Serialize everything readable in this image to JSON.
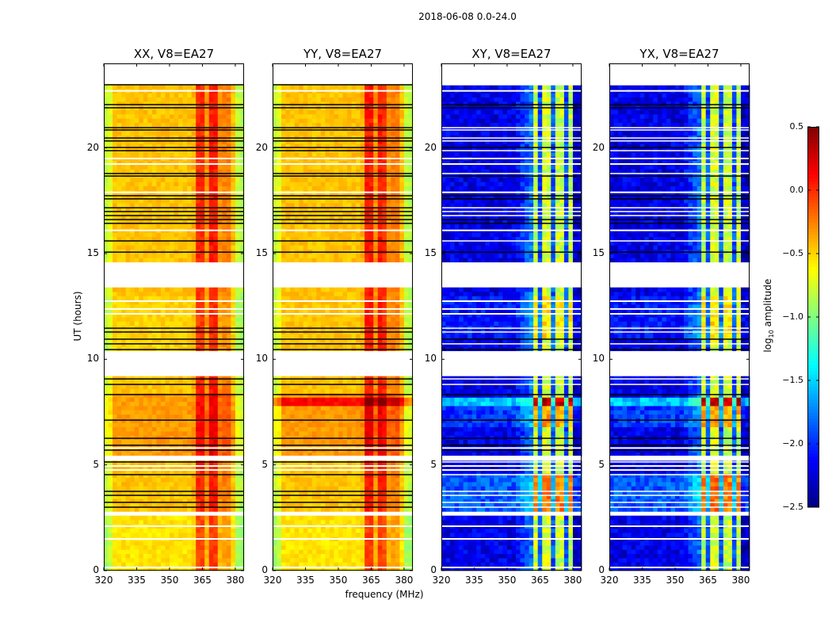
{
  "chart_data": {
    "type": "heatmap",
    "title": "2018-06-08 0.0-24.0",
    "xlabel": "frequency (MHz)",
    "ylabel": "UT (hours)",
    "xlim": [
      320,
      384
    ],
    "ylim": [
      0,
      24
    ],
    "xticks": [
      "320",
      "335",
      "350",
      "365",
      "380"
    ],
    "xtick_values": [
      320,
      335,
      350,
      365,
      380
    ],
    "yticks": [
      "0",
      "5",
      "10",
      "15",
      "20"
    ],
    "ytick_values": [
      0,
      5,
      10,
      15,
      20
    ],
    "colorbar": {
      "label": "log₁₀ amplitude",
      "label_main": "log",
      "label_sub": "10",
      "label_rest": " amplitude",
      "range": [
        -2.5,
        0.5
      ],
      "ticks": [
        "0.5",
        "0.0",
        "−0.5",
        "−1.0",
        "−1.5",
        "−2.0",
        "−2.5"
      ],
      "tick_values": [
        0.5,
        0.0,
        -0.5,
        -1.0,
        -1.5,
        -2.0,
        -2.5
      ],
      "colormap": "jet"
    },
    "freq_bin_MHz": 2,
    "time_bin_hours": 0.2,
    "flagged_hours": [
      [
        22.95,
        24
      ],
      [
        13.45,
        14.6
      ],
      [
        9.12,
        10.35
      ],
      [
        2.62,
        2.75
      ],
      [
        5.2,
        5.35
      ]
    ],
    "black_lines_hours": [
      22.99,
      22.05,
      21.9,
      20.96,
      20.85,
      20.47,
      20.33,
      20.02,
      19.87,
      18.79,
      18.67,
      17.74,
      17.59,
      17.17,
      16.99,
      16.8,
      16.61,
      16.43,
      15.6,
      15.07,
      11.47,
      11.29,
      10.95,
      10.73,
      10.46,
      9.07,
      8.81,
      8.33,
      7.12,
      6.26,
      5.93,
      5.7,
      5.14,
      4.54,
      3.75,
      3.56,
      3.23,
      3.0
    ],
    "white_lines_hours": [
      22.7,
      19.5,
      19.24,
      17.9,
      16.1,
      12.75,
      12.38,
      12.15,
      5.8,
      5.4,
      4.95,
      4.76,
      2.1,
      1.5,
      0.15
    ],
    "panels": [
      {
        "title": "XX, V8=EA27",
        "kind": "parallel",
        "freq_profile_log10": [
          -0.8,
          -0.7,
          -0.45,
          -0.45,
          -0.45,
          -0.45,
          -0.45,
          -0.45,
          -0.45,
          -0.45,
          -0.45,
          -0.45,
          -0.45,
          -0.45,
          -0.45,
          -0.45,
          -0.45,
          -0.45,
          -0.45,
          -0.45,
          -0.4,
          0.0,
          0.0,
          -0.3,
          0.05,
          0.05,
          -0.3,
          -0.25,
          -0.25,
          -0.45,
          -0.8,
          -0.85
        ],
        "time_offsets": [
          {
            "from": 5.5,
            "to": 8.5,
            "delta": 0.12
          },
          {
            "from": 10.4,
            "to": 13.1,
            "delta": -0.05
          },
          {
            "from": 0,
            "to": 2.6,
            "delta": -0.1
          }
        ]
      },
      {
        "title": "YY, V8=EA27",
        "kind": "parallel",
        "freq_profile_log10": [
          -0.8,
          -0.7,
          -0.45,
          -0.45,
          -0.45,
          -0.45,
          -0.45,
          -0.45,
          -0.45,
          -0.45,
          -0.45,
          -0.45,
          -0.45,
          -0.45,
          -0.45,
          -0.45,
          -0.45,
          -0.45,
          -0.45,
          -0.45,
          -0.4,
          0.05,
          0.05,
          -0.3,
          0.05,
          0.0,
          -0.3,
          -0.25,
          -0.25,
          -0.45,
          -0.8,
          -0.85
        ],
        "time_offsets": [
          {
            "from": 5.5,
            "to": 8.5,
            "delta": 0.12
          },
          {
            "from": 7.9,
            "to": 8.3,
            "delta": 0.45
          },
          {
            "from": 0,
            "to": 2.6,
            "delta": -0.1
          }
        ]
      },
      {
        "title": "XY, V8=EA27",
        "kind": "cross",
        "freq_profile_log10": [
          -2.2,
          -2.2,
          -2.2,
          -2.2,
          -2.2,
          -2.2,
          -2.2,
          -2.2,
          -2.2,
          -2.2,
          -2.2,
          -2.2,
          -2.2,
          -2.2,
          -2.2,
          -2.2,
          -2.2,
          -2.1,
          -2.0,
          -1.9,
          -1.8,
          -0.8,
          -1.9,
          -0.75,
          -0.75,
          -1.9,
          -0.8,
          -0.8,
          -1.9,
          -0.8,
          -2.3,
          -2.3
        ],
        "time_offsets": [
          {
            "from": 2.8,
            "to": 4.6,
            "delta": 0.55
          },
          {
            "from": 7.8,
            "to": 8.3,
            "delta": 1.1
          },
          {
            "from": 6.8,
            "to": 7.8,
            "delta": 0.4
          },
          {
            "from": 11.0,
            "to": 13.0,
            "delta": 0.2
          }
        ]
      },
      {
        "title": "YX, V8=EA27",
        "kind": "cross",
        "freq_profile_log10": [
          -2.2,
          -2.2,
          -2.2,
          -2.2,
          -2.2,
          -2.2,
          -2.2,
          -2.2,
          -2.2,
          -2.2,
          -2.2,
          -2.2,
          -2.2,
          -2.2,
          -2.2,
          -2.2,
          -2.2,
          -2.1,
          -2.0,
          -1.9,
          -1.8,
          -0.8,
          -1.9,
          -0.75,
          -0.75,
          -1.9,
          -0.8,
          -0.8,
          -1.9,
          -0.8,
          -2.3,
          -2.3
        ],
        "time_offsets": [
          {
            "from": 2.8,
            "to": 4.6,
            "delta": 0.55
          },
          {
            "from": 7.8,
            "to": 8.3,
            "delta": 1.1
          },
          {
            "from": 6.8,
            "to": 7.8,
            "delta": 0.4
          },
          {
            "from": 11.0,
            "to": 13.0,
            "delta": 0.2
          }
        ]
      }
    ]
  }
}
